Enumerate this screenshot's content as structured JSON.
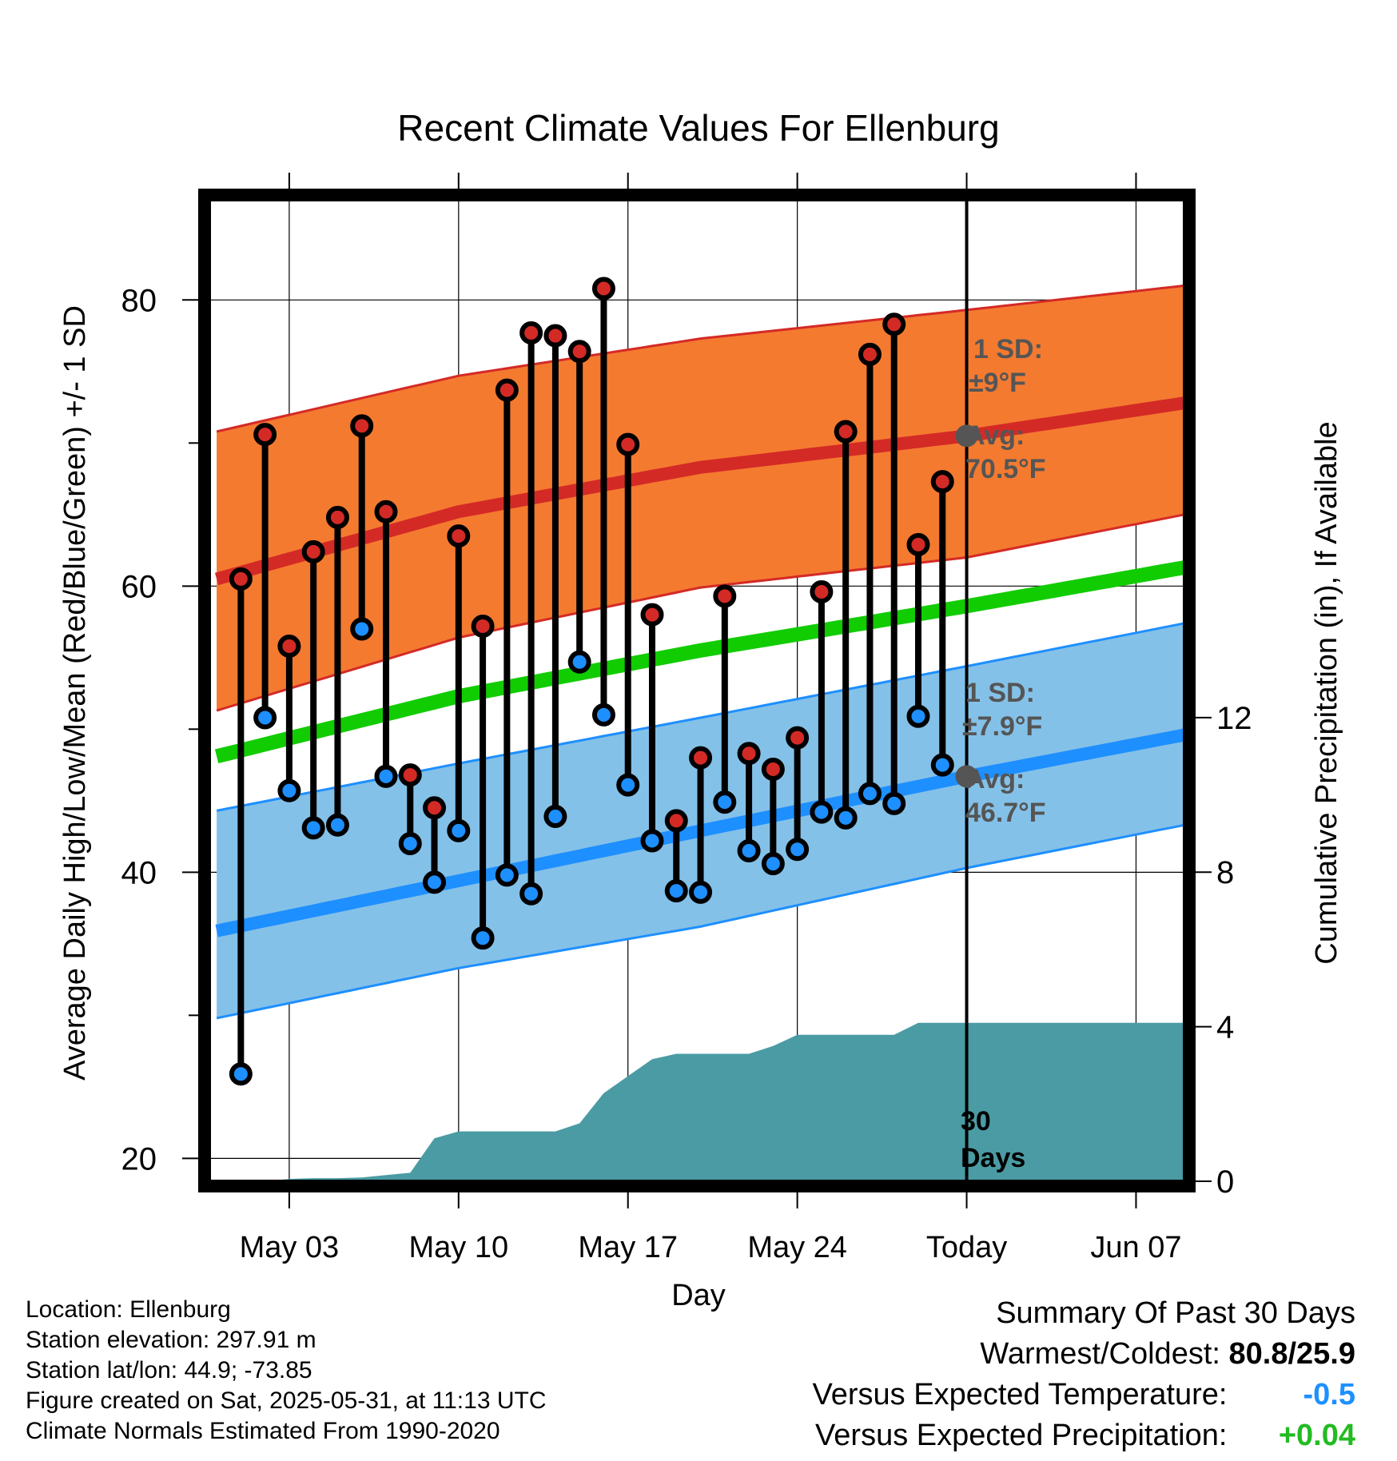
{
  "chart_data": {
    "type": "line",
    "title": "Recent Climate Values For Ellenburg",
    "xlabel": "Day",
    "ylabel_left": "Average Daily High/Low/Mean (Red/Blue/Green) +/- 1 SD",
    "ylabel_right": "Cumulative Precipitation (in), If Available",
    "x_start_date": "2025-04-30",
    "x_ticks": [
      {
        "day": 3,
        "label": "May 03"
      },
      {
        "day": 10,
        "label": "May 10"
      },
      {
        "day": 17,
        "label": "May 17"
      },
      {
        "day": 24,
        "label": "May 24"
      },
      {
        "day": 31,
        "label": "Today"
      },
      {
        "day": 38,
        "label": "Jun 07"
      }
    ],
    "xlim": [
      -0.3,
      40
    ],
    "ylim_left": [
      18.4,
      87
    ],
    "left_ticks": [
      20,
      40,
      60,
      80
    ],
    "left_minor_ticks": [
      30,
      50,
      70
    ],
    "ylim_right": [
      0,
      25.4
    ],
    "right_ticks": [
      0,
      4,
      8,
      12
    ],
    "grid": true,
    "today_day": 31,
    "normal_high": {
      "x": [
        0,
        10,
        20,
        31,
        40
      ],
      "mean": [
        60.5,
        65.2,
        68.3,
        70.5,
        72.8
      ],
      "upper": [
        70.8,
        74.7,
        77.3,
        79.3,
        81.0
      ],
      "lower": [
        51.3,
        56.4,
        59.9,
        62.0,
        65.0
      ]
    },
    "normal_low": {
      "x": [
        0,
        10,
        20,
        31,
        40
      ],
      "mean": [
        35.9,
        39.4,
        42.9,
        46.7,
        49.6
      ],
      "upper": [
        44.3,
        47.6,
        50.8,
        54.4,
        57.4
      ],
      "lower": [
        29.8,
        33.3,
        36.2,
        40.3,
        43.3
      ]
    },
    "normal_mean": {
      "x": [
        0,
        10,
        20,
        31,
        40
      ],
      "values": [
        48.1,
        52.3,
        55.5,
        58.6,
        61.3
      ]
    },
    "daily": {
      "days": [
        1,
        2,
        3,
        4,
        5,
        6,
        7,
        8,
        9,
        10,
        11,
        12,
        13,
        14,
        15,
        16,
        17,
        18,
        19,
        20,
        21,
        22,
        23,
        24,
        25,
        26,
        27,
        28,
        29,
        30
      ],
      "highs": [
        60.5,
        70.6,
        55.8,
        62.4,
        64.8,
        71.2,
        65.2,
        46.8,
        44.5,
        63.5,
        57.2,
        73.7,
        77.7,
        77.5,
        76.4,
        80.8,
        69.9,
        58.0,
        43.6,
        48.0,
        59.3,
        48.3,
        47.2,
        49.4,
        59.6,
        70.8,
        76.2,
        78.3,
        62.9,
        67.3
      ],
      "lows": [
        25.9,
        50.8,
        45.7,
        43.1,
        43.3,
        57.0,
        46.7,
        42.0,
        39.3,
        42.9,
        35.4,
        39.8,
        38.5,
        43.9,
        54.7,
        51.0,
        46.1,
        42.2,
        38.7,
        38.6,
        44.9,
        41.5,
        40.6,
        41.6,
        44.2,
        43.8,
        45.5,
        44.8,
        50.9,
        47.5
      ]
    },
    "precip": {
      "x": [
        0,
        1,
        2,
        3,
        4,
        5,
        6,
        7,
        8,
        9,
        10,
        11,
        12,
        13,
        14,
        15,
        16,
        17,
        18,
        19,
        20,
        21,
        22,
        23,
        24,
        25,
        26,
        27,
        28,
        29,
        30,
        31,
        40
      ],
      "values": [
        0,
        0,
        0,
        0.06,
        0.08,
        0.08,
        0.1,
        0.16,
        0.22,
        1.11,
        1.29,
        1.29,
        1.29,
        1.29,
        1.29,
        1.5,
        2.28,
        2.72,
        3.16,
        3.3,
        3.3,
        3.3,
        3.3,
        3.5,
        3.79,
        3.79,
        3.79,
        3.79,
        3.79,
        4.1,
        4.1,
        4.1,
        4.1
      ]
    },
    "annotations": {
      "high_sd": "1 SD:",
      "high_sd_value": "±9°F",
      "high_avg": "Avg:",
      "high_avg_value": "70.5°F",
      "low_sd": "1 SD:",
      "low_sd_value": "±7.9°F",
      "low_avg": "Avg:",
      "low_avg_value": "46.7°F",
      "days_label_1": "30",
      "days_label_2": "Days"
    },
    "colors": {
      "high_band": "#f47a30",
      "high_line": "#d42a26",
      "low_band": "#84c1e8",
      "low_line": "#1e8fff",
      "mean_line": "#11cc00",
      "precip_fill": "#4a9ba4",
      "high_marker": "#d42a26",
      "low_marker": "#1e8fff",
      "today_marker": "#555555"
    }
  },
  "info": {
    "location": "Location: Ellenburg",
    "elevation": "Station elevation: 297.91 m",
    "latlon": "Station lat/lon: 44.9; -73.85",
    "created": "Figure created on Sat, 2025-05-31, at 11:13 UTC",
    "normals": "Climate Normals Estimated From 1990-2020"
  },
  "summary": {
    "title": "Summary Of Past 30 Days",
    "warmest_label": "Warmest/Coldest:",
    "warmest_value": "80.8/25.9",
    "temp_label": "Versus Expected Temperature:",
    "temp_value": "-0.5",
    "precip_label": "Versus Expected Precipitation:",
    "precip_value": "+0.04"
  }
}
